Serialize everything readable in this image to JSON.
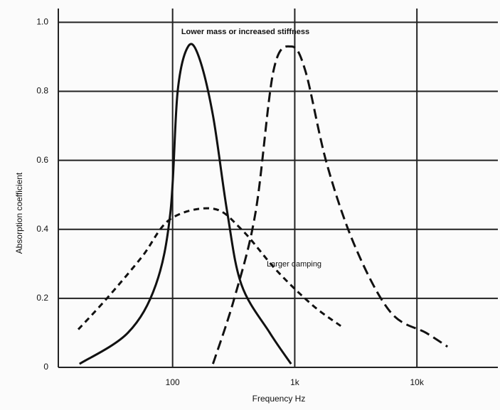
{
  "chart_data": {
    "type": "line",
    "y_label": "Absorption coefficient",
    "x_label": "Frequency Hz",
    "annotations": [
      "Lower mass or increased stiffness",
      "Larger damping"
    ],
    "log_x": true,
    "grid": true,
    "xlim": [
      11.6,
      46000
    ],
    "xticks": [
      {
        "value": 100,
        "label": "100"
      },
      {
        "value": 1000,
        "label": "1k"
      },
      {
        "value": 10000,
        "label": "10k"
      }
    ],
    "ylim": [
      0,
      1.04
    ],
    "yticks": [
      0,
      0.2,
      0.4,
      0.6,
      0.8,
      {
        "value": 1.0,
        "label": "1.0"
      }
    ],
    "series": [
      {
        "style": "solid",
        "color": "#111111",
        "x": [
          17.3,
          43,
          73,
          96,
          110,
          134,
          164,
          214,
          280,
          366,
          625,
          933
        ],
        "values": [
          0.01,
          0.1,
          0.24,
          0.45,
          0.8,
          0.93,
          0.9,
          0.73,
          0.45,
          0.24,
          0.1,
          0.01
        ]
      },
      {
        "style": "dashed",
        "color": "#111111",
        "x": [
          214,
          320,
          478,
          670,
          933,
          1220,
          1830,
          3120,
          6080,
          11900,
          17800
        ],
        "values": [
          0.01,
          0.2,
          0.45,
          0.86,
          0.93,
          0.86,
          0.59,
          0.35,
          0.16,
          0.1,
          0.06
        ]
      },
      {
        "style": "short-dashed",
        "color": "#111111",
        "x": [
          16.9,
          29,
          56,
          96,
          214,
          366,
          714,
          1400,
          2380
        ],
        "values": [
          0.11,
          0.2,
          0.32,
          0.43,
          0.46,
          0.4,
          0.28,
          0.18,
          0.12
        ]
      }
    ]
  }
}
